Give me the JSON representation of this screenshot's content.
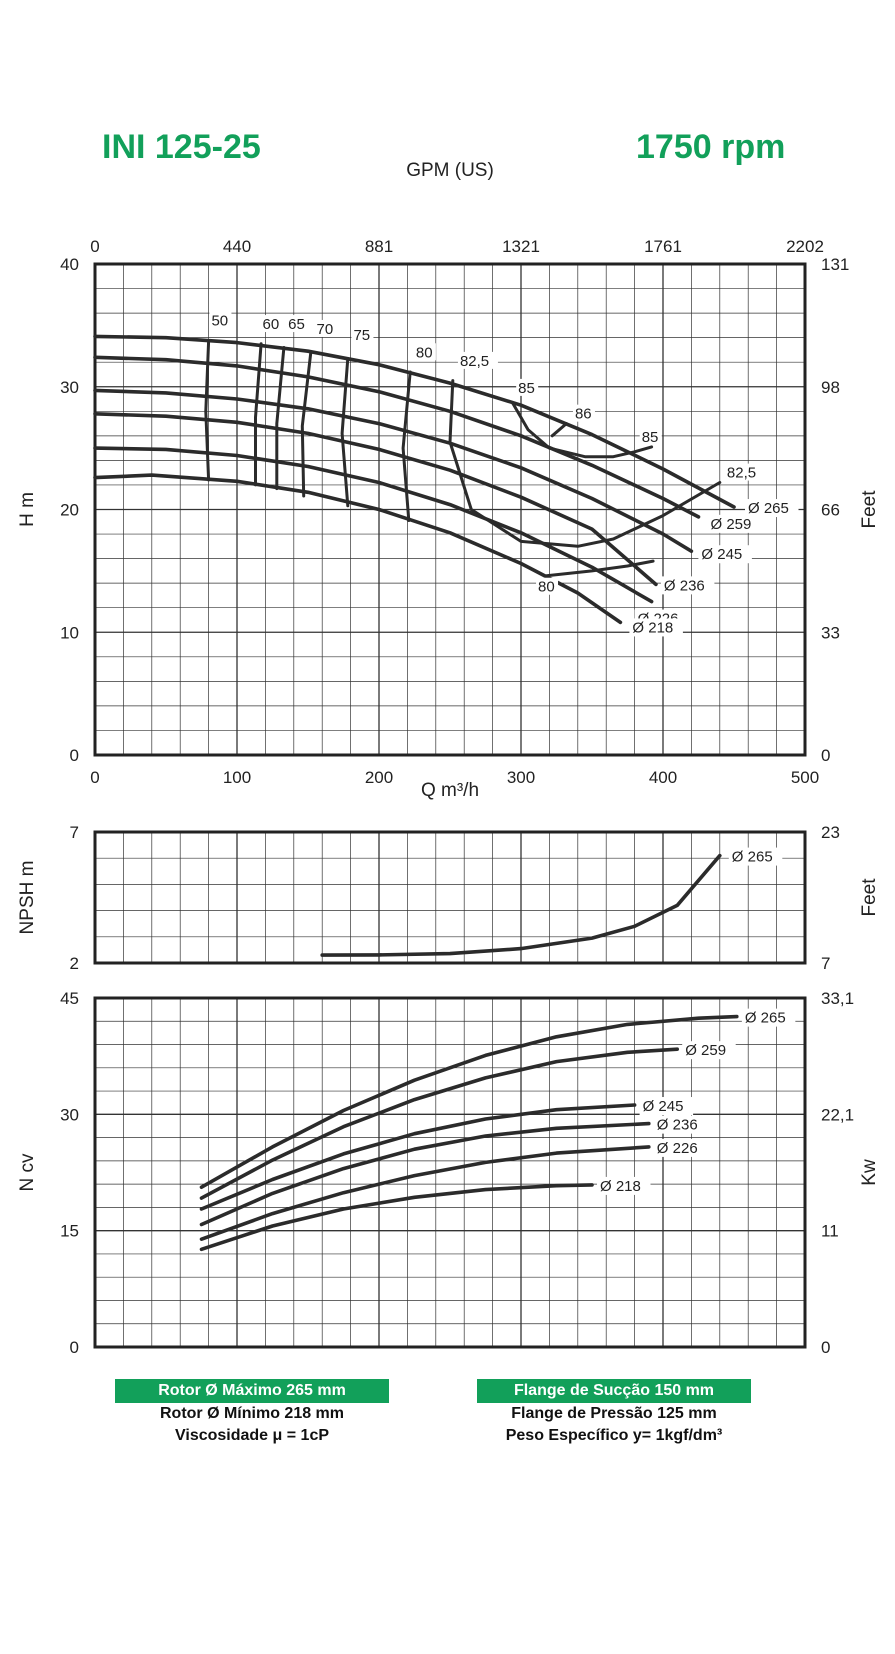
{
  "header": {
    "model": "INI 125-25",
    "rpm": "1750 rpm"
  },
  "footer": {
    "left": [
      "Rotor Ø Máximo 265 mm",
      "Rotor Ø Mínimo 218 mm",
      "Viscosidade μ = 1cP"
    ],
    "right": [
      "Flange de Sucção 150 mm",
      "Flange de Pressão 125 mm",
      "Peso Específico y= 1kgf/dm³"
    ]
  },
  "colors": {
    "accent": "#12a05a",
    "curve": "#2b2b2b",
    "grid": "#333333"
  },
  "chart_data": [
    {
      "id": "head",
      "type": "line",
      "xlabel": "Q m³/h",
      "ylabel": "H m",
      "x2label": "GPM (US)",
      "y2label": "Feet",
      "xlim": [
        0,
        500
      ],
      "ylim": [
        0,
        40
      ],
      "x_ticks": [
        "0",
        "100",
        "200",
        "300",
        "400",
        "500"
      ],
      "y_ticks": [
        "0",
        "10",
        "20",
        "30",
        "40"
      ],
      "x2_ticks": [
        "0",
        "440",
        "881",
        "1321",
        "1761",
        "2202"
      ],
      "y2_ticks": [
        "0",
        "33",
        "66",
        "98",
        "131"
      ],
      "grid": true,
      "series": [
        {
          "name": "Ø 265",
          "x": [
            0,
            50,
            100,
            150,
            200,
            250,
            300,
            350,
            400,
            450
          ],
          "y": [
            34.1,
            34.0,
            33.6,
            32.9,
            31.8,
            30.3,
            28.5,
            26.1,
            23.3,
            20.2
          ]
        },
        {
          "name": "Ø 259",
          "x": [
            0,
            50,
            100,
            150,
            200,
            250,
            300,
            350,
            400,
            425
          ],
          "y": [
            32.4,
            32.2,
            31.7,
            30.8,
            29.6,
            28.0,
            26.0,
            23.6,
            20.9,
            19.4
          ]
        },
        {
          "name": "Ø 245",
          "x": [
            0,
            50,
            100,
            150,
            200,
            250,
            300,
            350,
            400,
            420
          ],
          "y": [
            29.7,
            29.5,
            29.0,
            28.2,
            27.0,
            25.4,
            23.4,
            20.9,
            18.0,
            16.6
          ]
        },
        {
          "name": "Ø 236",
          "x": [
            0,
            50,
            100,
            150,
            200,
            250,
            300,
            350,
            395
          ],
          "y": [
            27.8,
            27.6,
            27.1,
            26.2,
            24.9,
            23.2,
            21.0,
            18.4,
            13.9
          ]
        },
        {
          "name": "Ø 226",
          "x": [
            0,
            50,
            100,
            150,
            200,
            250,
            300,
            350,
            392
          ],
          "y": [
            25.0,
            24.9,
            24.4,
            23.5,
            22.2,
            20.4,
            18.1,
            15.3,
            12.5
          ]
        },
        {
          "name": "Ø 218",
          "x": [
            0,
            40,
            100,
            150,
            200,
            250,
            300,
            340,
            370
          ],
          "y": [
            22.6,
            22.8,
            22.3,
            21.4,
            20.0,
            18.1,
            15.6,
            13.2,
            10.8
          ]
        }
      ],
      "efficiency_lines": [
        {
          "label": "50",
          "x": [
            80,
            78,
            80
          ],
          "y": [
            33.7,
            28.0,
            22.4
          ]
        },
        {
          "label": "60",
          "x": [
            117,
            113,
            113
          ],
          "y": [
            33.5,
            27.5,
            22.0
          ]
        },
        {
          "label": "65",
          "x": [
            133,
            128,
            128
          ],
          "y": [
            33.2,
            27.0,
            21.7
          ]
        },
        {
          "label": "70",
          "x": [
            152,
            146,
            147
          ],
          "y": [
            32.8,
            26.8,
            21.1
          ]
        },
        {
          "label": "75",
          "x": [
            178,
            174,
            178
          ],
          "y": [
            32.3,
            26.2,
            20.3
          ]
        },
        {
          "label": "80",
          "x": [
            222,
            217,
            221
          ],
          "y": [
            31.2,
            25.0,
            19.1
          ]
        },
        {
          "label": "82,5",
          "x": [
            252,
            250,
            265,
            300,
            340,
            365,
            400,
            440
          ],
          "y": [
            30.5,
            25.5,
            20.0,
            17.4,
            17.0,
            17.6,
            19.5,
            22.2
          ]
        },
        {
          "label": "85",
          "x": [
            294,
            305,
            320,
            345,
            365,
            380,
            392
          ],
          "y": [
            28.7,
            26.5,
            25.0,
            24.3,
            24.3,
            24.7,
            25.1
          ]
        },
        {
          "label": "86",
          "x": [
            322,
            332
          ],
          "y": [
            26.0,
            27.0
          ]
        },
        {
          "label": "80",
          "x": [
            318,
            350,
            375,
            393
          ],
          "y": [
            14.6,
            15.0,
            15.4,
            15.8
          ]
        }
      ],
      "annotations": [
        "50",
        "60",
        "65",
        "70",
        "75",
        "80",
        "82,5",
        "85",
        "86",
        "85",
        "82,5",
        "80"
      ]
    },
    {
      "id": "npsh",
      "type": "line",
      "ylabel": "NPSH m",
      "y2label": "Feet",
      "xlim": [
        0,
        500
      ],
      "ylim": [
        2,
        7
      ],
      "y_ticks": [
        "2",
        "7"
      ],
      "y2_ticks": [
        "7",
        "23"
      ],
      "grid": true,
      "series": [
        {
          "name": "Ø 265",
          "x": [
            160,
            200,
            250,
            300,
            350,
            380,
            410,
            440
          ],
          "y": [
            2.3,
            2.31,
            2.36,
            2.55,
            2.95,
            3.4,
            4.2,
            6.1
          ]
        }
      ]
    },
    {
      "id": "power",
      "type": "line",
      "ylabel": "N cv",
      "y2label": "Kw",
      "xlim": [
        0,
        500
      ],
      "ylim": [
        0,
        45
      ],
      "y_ticks": [
        "0",
        "15",
        "30",
        "45"
      ],
      "y2_ticks": [
        "0",
        "11",
        "22,1",
        "33,1"
      ],
      "grid": true,
      "series": [
        {
          "name": "Ø 265",
          "x": [
            75,
            125,
            175,
            225,
            275,
            325,
            375,
            425,
            452
          ],
          "y": [
            20.6,
            25.8,
            30.5,
            34.4,
            37.6,
            40.0,
            41.6,
            42.4,
            42.6
          ]
        },
        {
          "name": "Ø 259",
          "x": [
            75,
            125,
            175,
            225,
            275,
            325,
            375,
            410
          ],
          "y": [
            19.2,
            24.1,
            28.4,
            31.9,
            34.7,
            36.8,
            38.0,
            38.4
          ]
        },
        {
          "name": "Ø 245",
          "x": [
            75,
            125,
            175,
            225,
            275,
            325,
            380
          ],
          "y": [
            17.8,
            21.6,
            24.9,
            27.5,
            29.4,
            30.6,
            31.2
          ]
        },
        {
          "name": "Ø 236",
          "x": [
            75,
            125,
            175,
            225,
            275,
            325,
            390
          ],
          "y": [
            15.8,
            19.8,
            23.0,
            25.5,
            27.2,
            28.2,
            28.8
          ]
        },
        {
          "name": "Ø 226",
          "x": [
            75,
            125,
            175,
            225,
            275,
            325,
            390
          ],
          "y": [
            13.9,
            17.2,
            19.9,
            22.1,
            23.8,
            25.0,
            25.8
          ]
        },
        {
          "name": "Ø 218",
          "x": [
            75,
            125,
            175,
            225,
            275,
            325,
            350
          ],
          "y": [
            12.6,
            15.6,
            17.8,
            19.3,
            20.3,
            20.8,
            20.9
          ]
        }
      ]
    }
  ]
}
